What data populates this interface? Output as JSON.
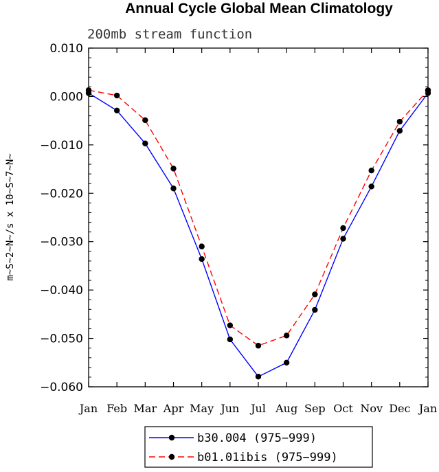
{
  "chart_data": {
    "type": "line",
    "title": "Annual Cycle Global Mean Climatology",
    "subtitle": "200mb stream function",
    "xlabel": "",
    "ylabel": "m~S~2~N~/s x 10~S~7~N~",
    "categories": [
      "Jan",
      "Feb",
      "Mar",
      "Apr",
      "May",
      "Jun",
      "Jul",
      "Aug",
      "Sep",
      "Oct",
      "Nov",
      "Dec",
      "Jan"
    ],
    "ylim": [
      -0.06,
      0.01
    ],
    "yticks": [
      "0.010",
      "0.000",
      "−0.010",
      "−0.020",
      "−0.030",
      "−0.040",
      "−0.050",
      "−0.060"
    ],
    "ytick_values": [
      0.01,
      0.0,
      -0.01,
      -0.02,
      -0.03,
      -0.04,
      -0.05,
      -0.06
    ],
    "grid": false,
    "legend_position": "bottom",
    "series": [
      {
        "name": "b30.004 (975−999)",
        "color": "#0000ff",
        "dash": "solid",
        "values": [
          0.0007,
          -0.0029,
          -0.0097,
          -0.019,
          -0.0336,
          -0.0502,
          -0.0579,
          -0.055,
          -0.0441,
          -0.0294,
          -0.0186,
          -0.0071,
          0.0007
        ]
      },
      {
        "name": "b01.01ibis (975−999)",
        "color": "#ff0000",
        "dash": "dashed",
        "values": [
          0.0013,
          0.0002,
          -0.0049,
          -0.0149,
          -0.031,
          -0.0473,
          -0.0515,
          -0.0494,
          -0.0409,
          -0.0272,
          -0.0153,
          -0.0052,
          0.0013
        ]
      }
    ]
  }
}
